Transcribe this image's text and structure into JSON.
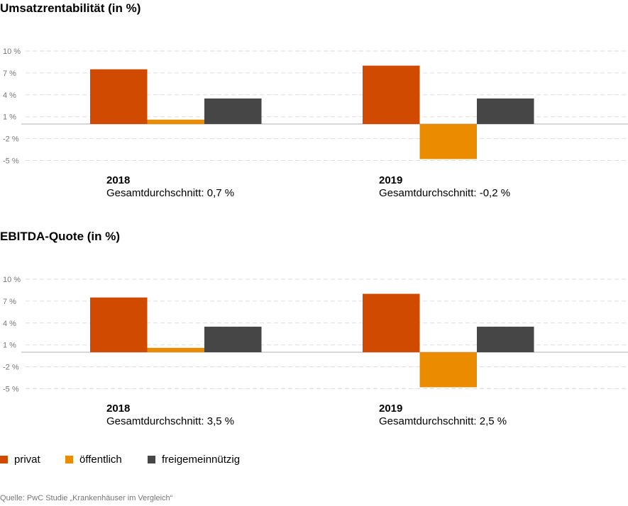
{
  "colors": {
    "privat": "#D04A02",
    "oeffentlich": "#EB8C00",
    "freigemeinnuetzig": "#464646"
  },
  "legend": [
    {
      "label": "privat",
      "color": "#D04A02"
    },
    {
      "label": "öffentlich",
      "color": "#EB8C00"
    },
    {
      "label": "freigemeinnützig",
      "color": "#464646"
    }
  ],
  "source": "Quelle: PwC Studie „Krankenhäuser im Vergleich“",
  "chart_data": [
    {
      "type": "bar",
      "title": "Umsatzrentabilität (in %)",
      "categories": [
        "2018",
        "2019"
      ],
      "category_notes": [
        "Gesamtdurchschnitt: 0,7 %",
        "Gesamtdurchschnitt: -0,2 %"
      ],
      "series": [
        {
          "name": "privat",
          "values": [
            7.5,
            8.0
          ]
        },
        {
          "name": "öffentlich",
          "values": [
            0.6,
            -4.8
          ]
        },
        {
          "name": "freigemeinnützig",
          "values": [
            3.5,
            3.5
          ]
        }
      ],
      "yticks": [
        10,
        7,
        4,
        1,
        -2,
        -5
      ],
      "ytick_labels": [
        "10 %",
        "7 %",
        "4 %",
        "1 %",
        "-2 %",
        "-5 %"
      ],
      "ylim": [
        -5,
        10
      ],
      "grid": true,
      "legend_position": "bottom"
    },
    {
      "type": "bar",
      "title": "EBITDA-Quote (in %)",
      "categories": [
        "2018",
        "2019"
      ],
      "category_notes": [
        "Gesamtdurchschnitt: 3,5 %",
        "Gesamtdurchschnitt: 2,5 %"
      ],
      "series": [
        {
          "name": "privat",
          "values": [
            7.5,
            8.0
          ]
        },
        {
          "name": "öffentlich",
          "values": [
            0.6,
            -4.8
          ]
        },
        {
          "name": "freigemeinnützig",
          "values": [
            3.5,
            3.5
          ]
        }
      ],
      "yticks": [
        10,
        7,
        4,
        1,
        -2,
        -5
      ],
      "ytick_labels": [
        "10 %",
        "7 %",
        "4 %",
        "1 %",
        "-2 %",
        "-5 %"
      ],
      "ylim": [
        -5,
        10
      ],
      "grid": true,
      "legend_position": "bottom"
    }
  ]
}
